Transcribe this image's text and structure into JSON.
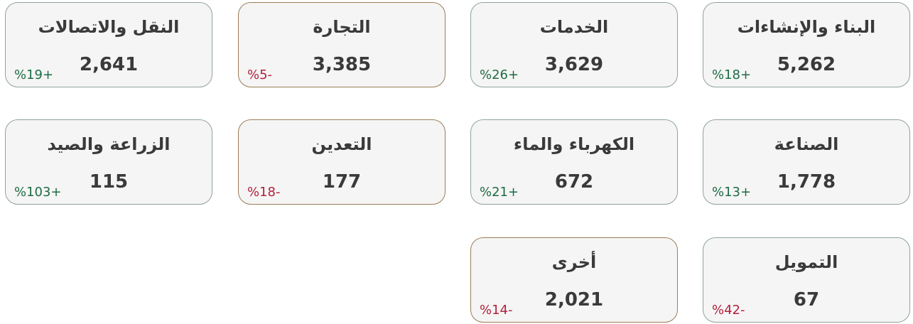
{
  "cards": [
    {
      "title": "البناء والإنشاءات",
      "value": "5,262",
      "change": "%18+",
      "color": "#1e6b45",
      "border": "#8fa39a"
    },
    {
      "title": "الخدمات",
      "value": "3,629",
      "change": "%26+",
      "color": "#1e6b45",
      "border": "#8fa39a"
    },
    {
      "title": "التجارة",
      "value": "3,385",
      "change": "%5-",
      "color": "#b3203c",
      "border": "#9a7d57"
    },
    {
      "title": "النقل والاتصالات",
      "value": "2,641",
      "change": "%19+",
      "color": "#1e6b45",
      "border": "#8fa39a"
    },
    {
      "title": "الصناعة",
      "value": "1,778",
      "change": "%13+",
      "color": "#1e6b45",
      "border": "#8fa39a"
    },
    {
      "title": "الكهرباء والماء",
      "value": "672",
      "change": "%21+",
      "color": "#1e6b45",
      "border": "#8fa39a"
    },
    {
      "title": "التعدين",
      "value": "177",
      "change": "%18-",
      "color": "#b3203c",
      "border": "#9a7d57"
    },
    {
      "title": "الزراعة والصيد",
      "value": "115",
      "change": "%103+",
      "color": "#1e6b45",
      "border": "#8fa39a"
    },
    {
      "title": "التمويل",
      "value": "67",
      "change": "%42-",
      "color": "#b3203c",
      "border": "#8fa39a"
    },
    {
      "title": "أخرى",
      "value": "2,021",
      "change": "%14-",
      "color": "#b3203c",
      "border": "#9a7d57"
    }
  ]
}
